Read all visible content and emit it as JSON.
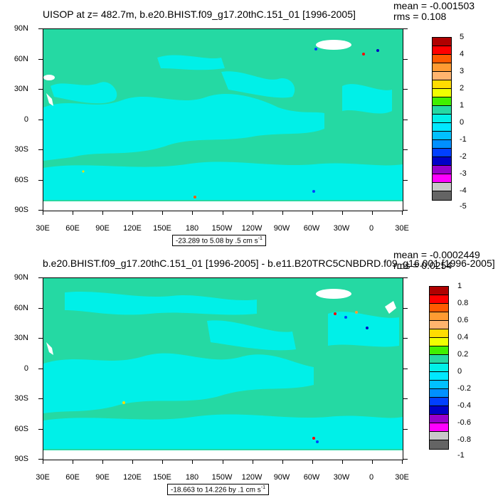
{
  "colors": {
    "ocean": "#25d9a3",
    "anomaly": "#00f0e8",
    "land_mask": "#ffffff",
    "frame": "#000000"
  },
  "axes": {
    "y_labels": [
      "90N",
      "60N",
      "30N",
      "0",
      "30S",
      "60S",
      "90S"
    ],
    "x_labels": [
      "30E",
      "60E",
      "90E",
      "120E",
      "150E",
      "180",
      "150W",
      "120W",
      "90W",
      "60W",
      "30W",
      "0",
      "30E"
    ]
  },
  "colorbar_colors": [
    "#b00000",
    "#ff0000",
    "#ff5a00",
    "#ff9b32",
    "#ffb46e",
    "#ffdc00",
    "#f0ff00",
    "#40f000",
    "#25d9a3",
    "#00f0e8",
    "#00e8ff",
    "#00c0ff",
    "#0090ff",
    "#0040ff",
    "#0000c8",
    "#9900cc",
    "#ff00ff",
    "#c8c8c8",
    "#646464"
  ],
  "panels": [
    {
      "title": "UISOP at z= 482.7m, b.e20.BHIST.f09_g17.20thC.151_01 [1996-2005]",
      "mean_label": "mean = -0.001503",
      "rms_label": "rms = 0.108",
      "range_text": "-23.289 to 5.08 by .5 cm s",
      "range_unit_exp": "-1",
      "colorbar_labels": [
        "5",
        "4",
        "3",
        "2",
        "1",
        "0",
        "-1",
        "-2",
        "-3",
        "-4",
        "-5"
      ]
    },
    {
      "title": "b.e20.BHIST.f09_g17.20thC.151_01 [1996-2005] - b.e11.B20TRC5CNBDRD.f09_g16.001 [1996-2005]",
      "mean_label": "mean = -0.0002449",
      "rms_label": "rms = 0.0254",
      "range_text": "-18.663 to 14.226 by .1 cm s",
      "range_unit_exp": "-1",
      "colorbar_labels": [
        "1",
        "0.8",
        "0.6",
        "0.4",
        "0.2",
        "0",
        "-0.2",
        "-0.4",
        "-0.6",
        "-0.8",
        "-1"
      ]
    }
  ]
}
